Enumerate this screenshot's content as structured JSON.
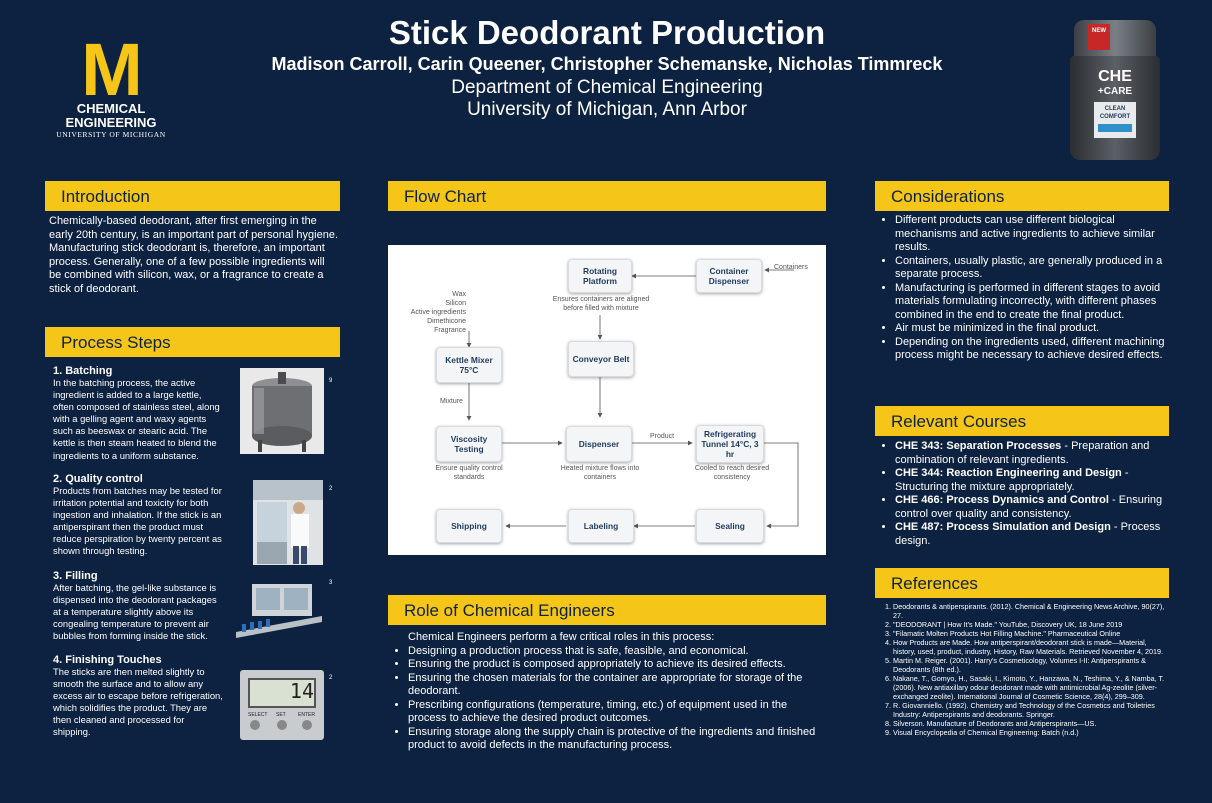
{
  "header": {
    "title": "Stick Deodorant Production",
    "authors": "Madison Carroll, Carin Queener, Christopher Schemanske, Nicholas Timmreck",
    "department": "Department of Chemical Engineering",
    "university": "University of Michigan, Ann Arbor"
  },
  "logo": {
    "mark": "M",
    "line1": "CHEMICAL",
    "line2": "ENGINEERING",
    "line3": "UNIVERSITY OF MICHIGAN"
  },
  "product_image": {
    "brand": "CHE",
    "sub": "+CARE",
    "label1": "CLEAN",
    "label2": "COMFORT",
    "top": "NEW"
  },
  "introduction": {
    "heading": "Introduction",
    "text": "Chemically-based deodorant, after first emerging in the early 20th century, is an important part of personal hygiene.  Manufacturing stick deodorant is, therefore, an important process.  Generally, one of a few possible ingredients will be combined with silicon, wax, or a fragrance to create a stick of deodorant."
  },
  "process_steps": {
    "heading": "Process Steps",
    "steps": [
      {
        "title": "1. Batching",
        "text": "In the batching process, the active ingredient is added to a large kettle, often composed of stainless steel, along with a gelling agent and waxy agents such as beeswax or stearic acid. The kettle is then steam heated to blend the ingredients to a uniform substance.",
        "ref": "9"
      },
      {
        "title": "2. Quality control",
        "text": "Products from batches may be tested for irritation potential and toxicity for both ingestion and inhalation. If the stick is an antiperspirant then the product must reduce perspiration by twenty percent as shown through testing.",
        "ref": "2"
      },
      {
        "title": "3. Filling",
        "text": "After batching, the gel-like substance is dispensed into the deodorant packages at a temperature slightly above its congealing temperature to prevent air bubbles from forming inside the stick.",
        "ref": "3"
      },
      {
        "title": "4. Finishing Touches",
        "text": "The sticks are then melted slightly to smooth the surface and to allow any excess air to escape before refrigeration, which solidifies the product. They are then cleaned and processed for shipping.",
        "ref": "2"
      }
    ],
    "display_reading": "14",
    "display_buttons": [
      "SELECT",
      "SET",
      "ENTER"
    ]
  },
  "flow_chart": {
    "heading": "Flow Chart",
    "boxes": {
      "rotating": "Rotating Platform",
      "container": "Container Dispenser",
      "kettle": "Kettle Mixer 75°C",
      "conveyor": "Conveyor Belt",
      "viscosity": "Viscosity Testing",
      "dispenser": "Dispenser",
      "refrigerating": "Refrigerating Tunnel 14°C, 3 hr",
      "shipping": "Shipping",
      "labeling": "Labeling",
      "sealing": "Sealing"
    },
    "labels": {
      "containers": "Containers",
      "ingredients": [
        "Wax",
        "Silicon",
        "Active ingredients",
        "Dimethicone",
        "Fragrance"
      ],
      "align": "Ensures containers are aligned before filled with mixture",
      "mixture": "Mixture",
      "product": "Product",
      "quality": "Ensure quality control standards",
      "heated": "Heated mixture flows into containers",
      "cooled": "Cooled to reach desired consistency"
    }
  },
  "role": {
    "heading": "Role of Chemical Engineers",
    "intro": "Chemical Engineers perform a few critical roles in this process:",
    "items": [
      "Designing a production process that is safe, feasible, and economical.",
      "Ensuring the product is composed appropriately to achieve its desired effects.",
      "Ensuring the chosen materials for the container are appropriate for storage of the deodorant.",
      "Prescribing configurations (temperature, timing, etc.) of equipment used in the process to achieve the desired product outcomes.",
      "Ensuring storage along the supply chain is protective of the ingredients and finished product to avoid defects in the manufacturing process."
    ]
  },
  "considerations": {
    "heading": "Considerations",
    "items": [
      "Different products can use different biological mechanisms and active ingredients to achieve similar results.",
      "Containers, usually plastic, are generally produced in a separate process.",
      "Manufacturing is performed in different stages to avoid materials formulating incorrectly, with different phases combined in the end to create the final product.",
      "Air must be minimized in the final product.",
      "Depending on the ingredients used, different machining process might be necessary to achieve desired effects."
    ]
  },
  "courses": {
    "heading": "Relevant Courses",
    "items": [
      {
        "name": "CHE 343: Separation Processes",
        "desc": " - Preparation and combination of relevant ingredients."
      },
      {
        "name": "CHE 344: Reaction Engineering and Design",
        "desc": " - Structuring the mixture appropriately."
      },
      {
        "name": "CHE 466: Process Dynamics and Control",
        "desc": " - Ensuring control over quality and consistency."
      },
      {
        "name": "CHE 487: Process Simulation and Design",
        "desc": " - Process design."
      }
    ]
  },
  "references": {
    "heading": "References",
    "items": [
      "Deodorants & antiperspirants. (2012). Chemical & Engineering News Archive, 90(27), 27.",
      "\"DEODORANT | How It's Made.\" YouTube, Discovery UK, 18 June 2019",
      "\"Filamatic Molten Products Hot Filling Machine.\" Pharmaceutical Online",
      "How Products are Made. How antiperspirant/deodorant stick is made—Material, history, used, product, industry, History, Raw Materials. Retrieved November 4, 2019.",
      "Martin M. Reiger. (2001). Harry's Cosmeticology, Volumes I-II: Antiperspirants & Deodorants (8th ed.).",
      "Nakane, T., Gomyo, H., Sasaki, I., Kimoto, Y., Hanzawa, N., Teshima, Y., & Namba, T. (2006). New antiaxillary odour deodorant made with antimicrobial Ag-zeolite (silver-exchanged zeolite). International Journal of Cosmetic Science, 28(4), 299–309.",
      "R. Giovanniello. (1992). Chemistry and Technology of the Cosmetics and Toiletries Industry: Antiperspirants and deodorants. Springer.",
      "Silverson. Manufacture of Deodorants and Antiperspirants—US.",
      "Visual Encyclopedia of Chemical Engineering: Batch (n.d.)"
    ]
  },
  "colors": {
    "background": "#0d2240",
    "accent": "#f5c518"
  }
}
